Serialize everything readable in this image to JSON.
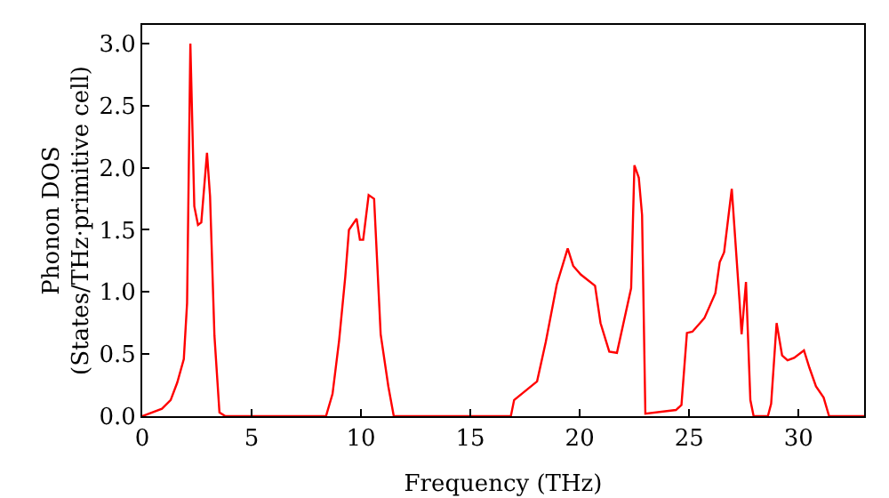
{
  "chart_data": {
    "type": "line",
    "xlabel": "Frequency (THz)",
    "ylabel": "Phonon DOS\n(States/THz·primitive cell)",
    "x": [
      0,
      0.9,
      1.3,
      1.6,
      1.9,
      2.05,
      2.2,
      2.38,
      2.55,
      2.7,
      2.96,
      3.1,
      3.3,
      3.53,
      3.8,
      8.4,
      8.7,
      9.0,
      9.28,
      9.45,
      9.8,
      9.95,
      10.1,
      10.35,
      10.6,
      10.9,
      11.25,
      11.5,
      16.85,
      17.0,
      18.05,
      18.45,
      18.95,
      19.45,
      19.7,
      20.05,
      20.7,
      20.95,
      21.35,
      21.7,
      22.0,
      22.35,
      22.5,
      22.7,
      22.85,
      23.0,
      24.4,
      24.65,
      24.9,
      25.15,
      25.5,
      25.7,
      26.2,
      26.4,
      26.6,
      26.95,
      27.3,
      27.4,
      27.6,
      27.8,
      27.95,
      28.6,
      28.75,
      29.0,
      29.25,
      29.5,
      29.8,
      30.25,
      30.5,
      30.8,
      31.15,
      31.4,
      33
    ],
    "series": [
      {
        "color": "#ff0000",
        "values": [
          0,
          0.06,
          0.13,
          0.27,
          0.46,
          0.91,
          3.0,
          1.69,
          1.54,
          1.56,
          2.12,
          1.77,
          0.65,
          0.03,
          0,
          0,
          0.18,
          0.61,
          1.12,
          1.5,
          1.59,
          1.42,
          1.42,
          1.78,
          1.75,
          0.66,
          0.24,
          0,
          0,
          0.13,
          0.28,
          0.6,
          1.06,
          1.35,
          1.21,
          1.14,
          1.05,
          0.75,
          0.52,
          0.51,
          0.75,
          1.03,
          2.02,
          1.92,
          1.62,
          0.02,
          0.05,
          0.09,
          0.67,
          0.68,
          0.75,
          0.79,
          0.99,
          1.24,
          1.32,
          1.83,
          0.94,
          0.66,
          1.08,
          0.13,
          0,
          0,
          0.1,
          0.75,
          0.49,
          0.45,
          0.47,
          0.53,
          0.39,
          0.24,
          0.15,
          0,
          0
        ]
      }
    ],
    "xlim": [
      0,
      33
    ],
    "xticks": [
      0,
      5,
      10,
      15,
      20,
      25,
      30
    ],
    "ylim": [
      0,
      3.15
    ],
    "yticks": [
      {
        "value": 0,
        "label": "0.0"
      },
      0.5,
      {
        "value": 1,
        "label": "1.0"
      },
      1.5,
      {
        "value": 2,
        "label": "2.0"
      },
      2.5,
      {
        "value": 3,
        "label": "3.0"
      }
    ],
    "grid": false,
    "marker": "none",
    "line_style": "solid"
  }
}
